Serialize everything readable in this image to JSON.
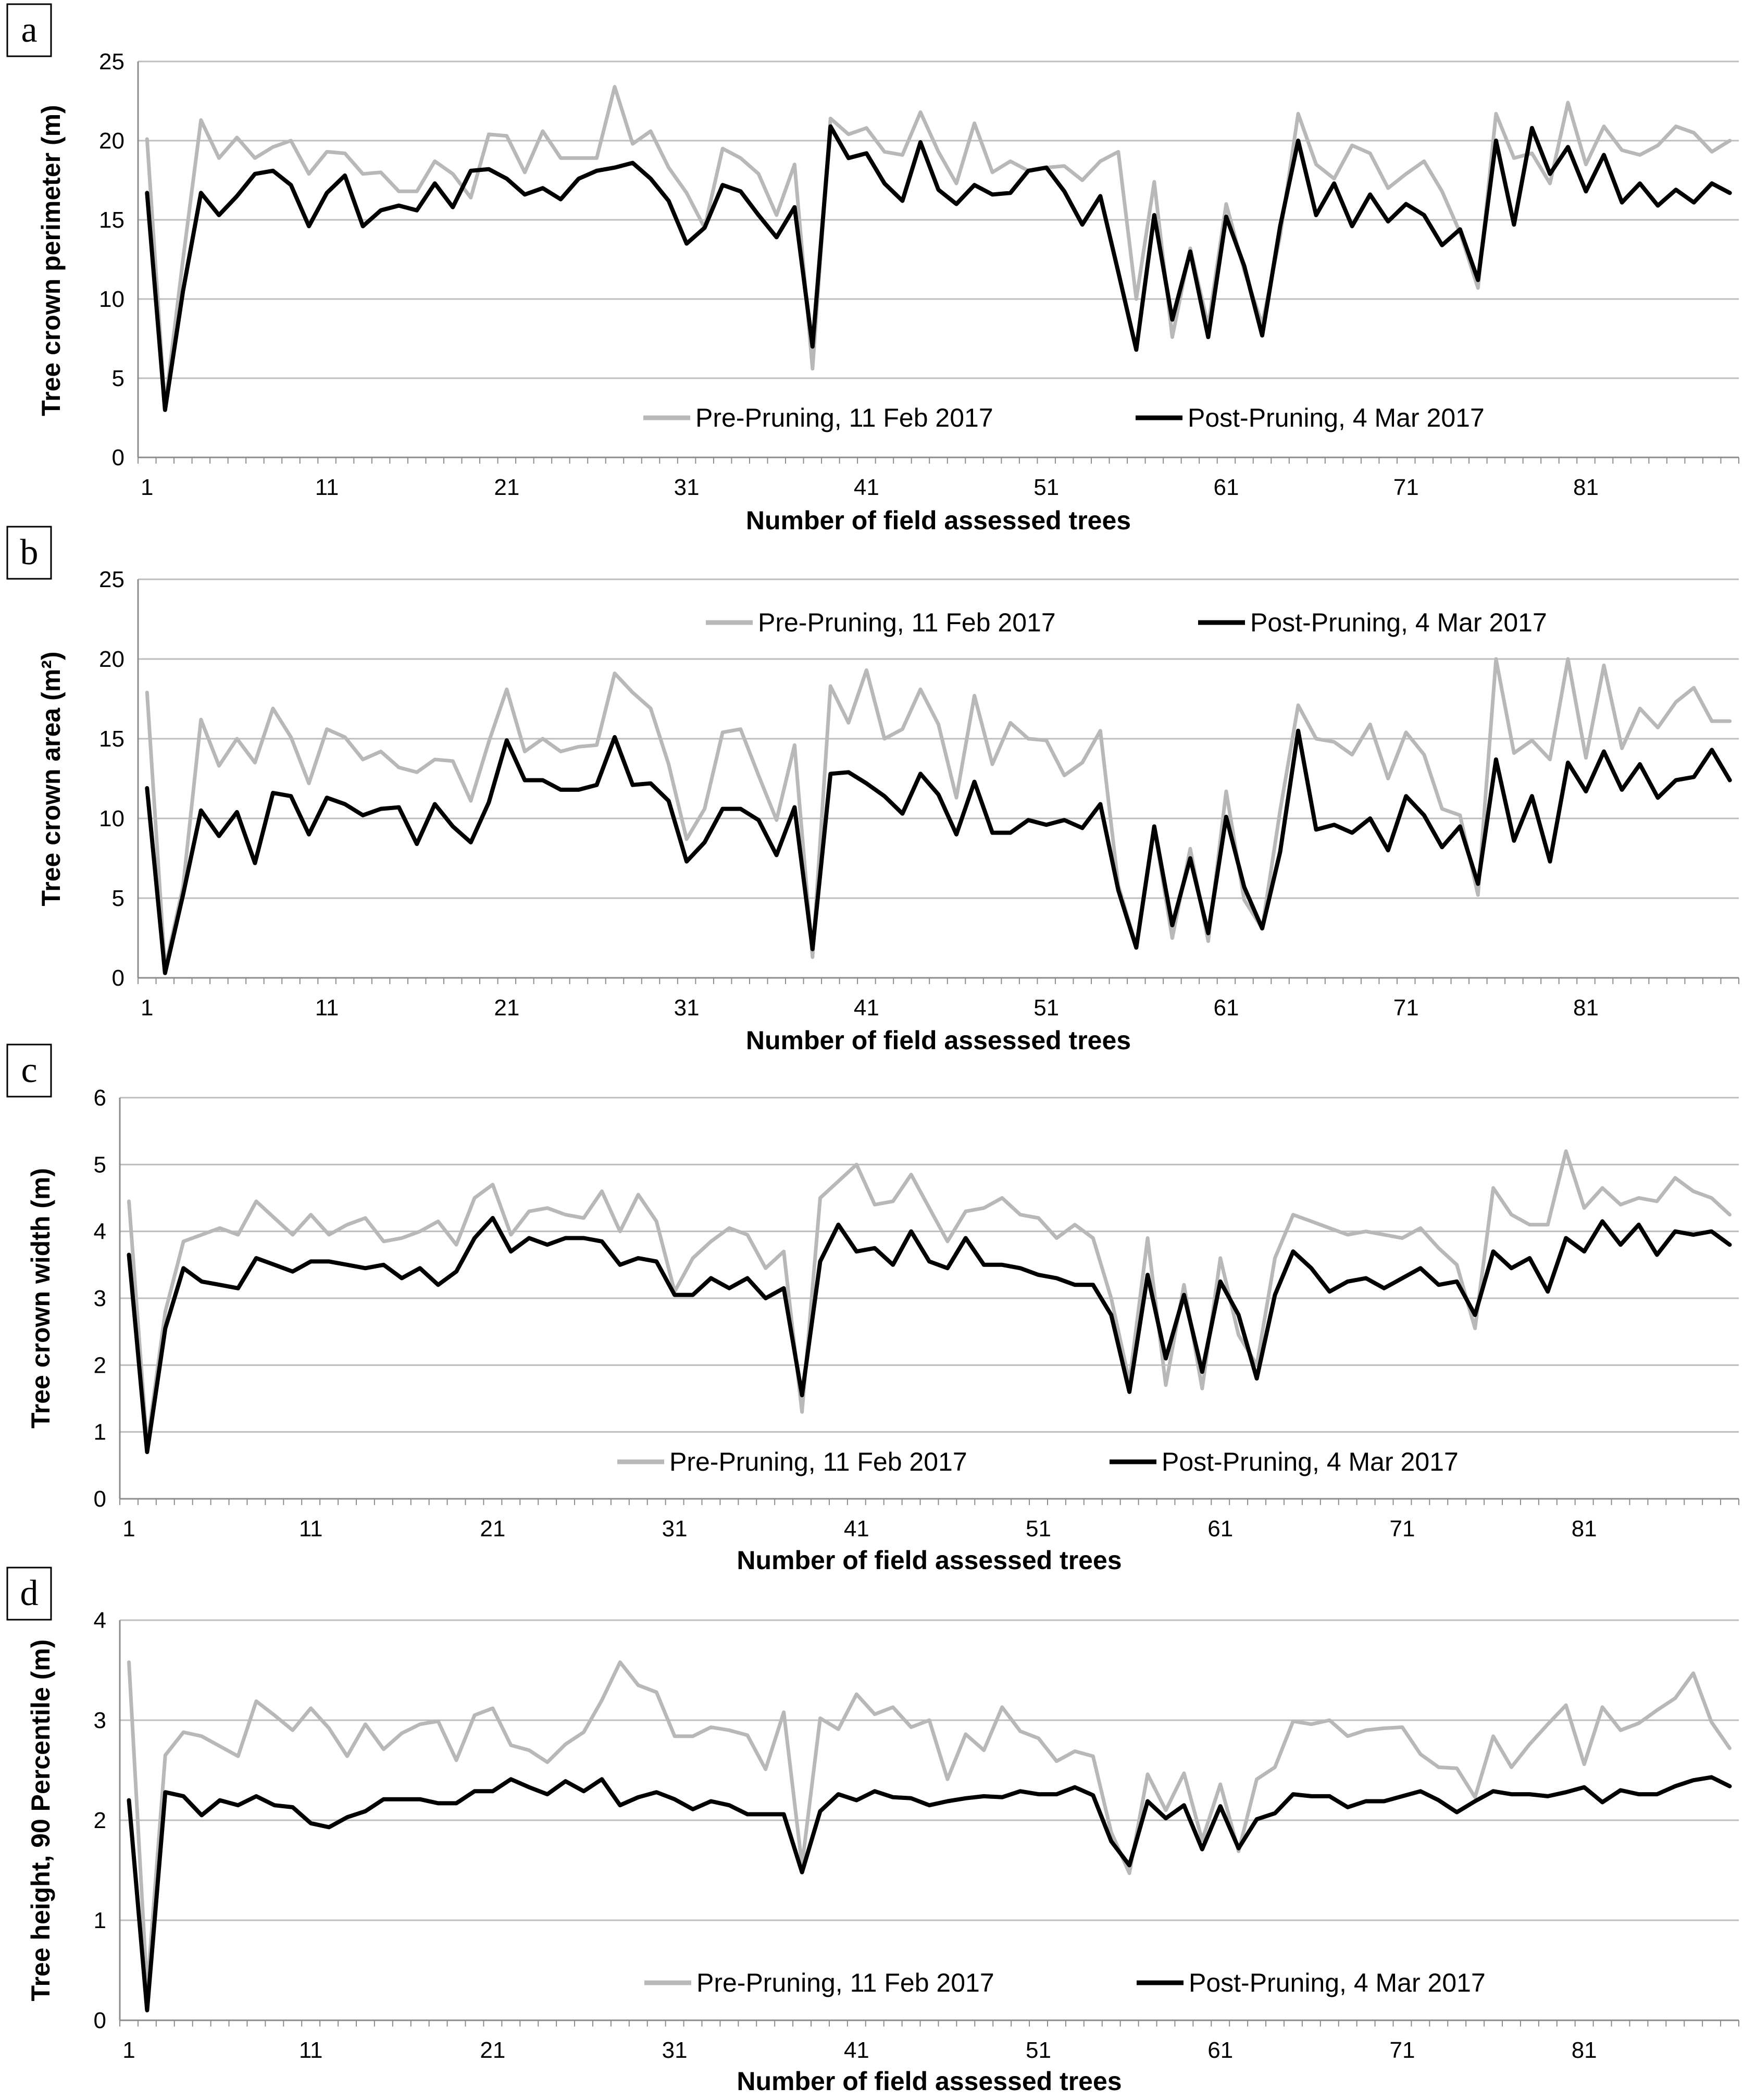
{
  "chart_data": [
    {
      "type": "line",
      "panel_label": "a",
      "ylabel": "Tree crown perimeter (m)",
      "xlabel": "Number of field assessed trees",
      "ylim": [
        0,
        25
      ],
      "yticks": [
        "0",
        "5",
        "10",
        "15",
        "20",
        "25"
      ],
      "xticks": [
        "1",
        "11",
        "21",
        "31",
        "41",
        "51",
        "61",
        "71",
        "81"
      ],
      "grid": true,
      "legend_position": "bottom-center",
      "series": [
        {
          "name": "Pre-Pruning, 11 Feb 2017",
          "color": "#b8b8b8",
          "values": [
            20.1,
            3.2,
            12.5,
            21.3,
            18.9,
            20.2,
            18.9,
            19.6,
            20.0,
            17.9,
            19.3,
            19.2,
            17.9,
            18.0,
            16.8,
            16.8,
            18.7,
            17.9,
            16.4,
            20.4,
            20.3,
            18.0,
            20.6,
            18.9,
            18.9,
            18.9,
            23.4,
            19.8,
            20.6,
            18.3,
            16.7,
            14.5,
            19.5,
            18.9,
            17.9,
            15.3,
            18.5,
            5.6,
            21.4,
            20.4,
            20.8,
            19.3,
            19.1,
            21.8,
            19.3,
            17.3,
            21.1,
            18.0,
            18.7,
            18.1,
            18.3,
            18.4,
            17.5,
            18.7,
            19.3,
            10.0,
            17.4,
            7.6,
            13.2,
            8.3,
            16.0,
            11.8,
            8.4,
            14.0,
            21.7,
            18.5,
            17.6,
            19.7,
            19.2,
            17.0,
            17.9,
            18.7,
            16.8,
            14.2,
            10.7,
            21.7,
            18.9,
            19.2,
            17.3,
            22.4,
            18.5,
            20.9,
            19.4,
            19.1,
            19.7,
            20.9,
            20.5,
            19.3,
            20.0
          ]
        },
        {
          "name": "Post-Pruning, 4 Mar 2017",
          "color": "#000000",
          "values": [
            16.7,
            3.0,
            10.5,
            16.7,
            15.3,
            16.5,
            17.9,
            18.1,
            17.2,
            14.6,
            16.7,
            17.8,
            14.6,
            15.6,
            15.9,
            15.6,
            17.3,
            15.8,
            18.1,
            18.2,
            17.6,
            16.6,
            17.0,
            16.3,
            17.6,
            18.1,
            18.3,
            18.6,
            17.6,
            16.2,
            13.5,
            14.5,
            17.2,
            16.8,
            15.3,
            13.9,
            15.8,
            7.0,
            20.9,
            18.9,
            19.2,
            17.3,
            16.2,
            19.9,
            16.9,
            16.0,
            17.2,
            16.6,
            16.7,
            18.1,
            18.3,
            16.8,
            14.7,
            16.5,
            11.7,
            6.8,
            15.3,
            8.7,
            13.0,
            7.6,
            15.2,
            12.1,
            7.7,
            14.6,
            20.0,
            15.3,
            17.3,
            14.6,
            16.6,
            14.9,
            16.0,
            15.3,
            13.4,
            14.4,
            11.2,
            20.0,
            14.7,
            20.8,
            17.9,
            19.6,
            16.8,
            19.1,
            16.1,
            17.3,
            15.9,
            16.9,
            16.1,
            17.3,
            16.7
          ]
        }
      ]
    },
    {
      "type": "line",
      "panel_label": "b",
      "ylabel": "Tree crown area (m²)",
      "xlabel": "Number of field assessed trees",
      "ylim": [
        0,
        25
      ],
      "yticks": [
        "0",
        "5",
        "10",
        "15",
        "20",
        "25"
      ],
      "xticks": [
        "1",
        "11",
        "21",
        "31",
        "41",
        "51",
        "61",
        "71",
        "81"
      ],
      "grid": true,
      "legend_position": "top-center",
      "series": [
        {
          "name": "Pre-Pruning, 11 Feb 2017",
          "color": "#b8b8b8",
          "values": [
            17.9,
            0.6,
            5.7,
            16.2,
            13.3,
            15.0,
            13.5,
            16.9,
            15.1,
            12.2,
            15.6,
            15.1,
            13.7,
            14.2,
            13.2,
            12.9,
            13.7,
            13.6,
            11.1,
            14.8,
            18.1,
            14.2,
            15.0,
            14.2,
            14.5,
            14.6,
            19.1,
            17.9,
            16.9,
            13.4,
            8.7,
            10.6,
            15.4,
            15.6,
            12.7,
            9.9,
            14.6,
            1.3,
            18.3,
            16.0,
            19.3,
            15.0,
            15.6,
            18.1,
            15.9,
            11.3,
            17.7,
            13.4,
            16.0,
            15.0,
            14.9,
            12.7,
            13.5,
            15.5,
            5.8,
            2.0,
            9.4,
            2.5,
            8.1,
            2.3,
            11.7,
            4.9,
            3.1,
            10.5,
            17.1,
            15.0,
            14.8,
            14.0,
            15.9,
            12.5,
            15.4,
            14.0,
            10.6,
            10.2,
            5.2,
            20.0,
            14.1,
            14.9,
            13.7,
            20.0,
            13.8,
            19.6,
            14.4,
            16.9,
            15.7,
            17.3,
            18.2,
            16.1,
            16.1
          ]
        },
        {
          "name": "Post-Pruning, 4 Mar 2017",
          "color": "#000000",
          "values": [
            11.9,
            0.3,
            5.2,
            10.5,
            8.9,
            10.4,
            7.2,
            11.6,
            11.4,
            9.0,
            11.3,
            10.9,
            10.2,
            10.6,
            10.7,
            8.4,
            10.9,
            9.5,
            8.5,
            11.0,
            14.9,
            12.4,
            12.4,
            11.8,
            11.8,
            12.1,
            15.1,
            12.1,
            12.2,
            11.1,
            7.3,
            8.5,
            10.6,
            10.6,
            9.9,
            7.7,
            10.7,
            1.8,
            12.8,
            12.9,
            12.2,
            11.4,
            10.3,
            12.8,
            11.5,
            9.0,
            12.3,
            9.1,
            9.1,
            9.9,
            9.6,
            9.9,
            9.4,
            10.9,
            5.5,
            1.9,
            9.5,
            3.3,
            7.5,
            2.8,
            10.1,
            5.7,
            3.1,
            7.9,
            15.5,
            9.3,
            9.6,
            9.1,
            10.0,
            8.0,
            11.4,
            10.2,
            8.2,
            9.5,
            5.9,
            13.7,
            8.6,
            11.4,
            7.3,
            13.5,
            11.7,
            14.2,
            11.8,
            13.4,
            11.3,
            12.4,
            12.6,
            14.3,
            12.4
          ]
        }
      ]
    },
    {
      "type": "line",
      "panel_label": "c",
      "ylabel": "Tree crown width (m)",
      "xlabel": "Number of field assessed trees",
      "ylim": [
        0,
        6
      ],
      "yticks": [
        "0",
        "1",
        "2",
        "3",
        "4",
        "5",
        "6"
      ],
      "xticks": [
        "1",
        "11",
        "21",
        "31",
        "41",
        "51",
        "61",
        "71",
        "81"
      ],
      "grid": true,
      "legend_position": "bottom-center",
      "series": [
        {
          "name": "Pre-Pruning, 11 Feb 2017",
          "color": "#b8b8b8",
          "values": [
            4.45,
            0.8,
            2.8,
            3.85,
            3.95,
            4.05,
            3.95,
            4.45,
            4.2,
            3.95,
            4.25,
            3.95,
            4.1,
            4.2,
            3.85,
            3.9,
            4.0,
            4.15,
            3.8,
            4.5,
            4.7,
            3.95,
            4.3,
            4.35,
            4.25,
            4.2,
            4.6,
            4.0,
            4.55,
            4.15,
            3.1,
            3.6,
            3.85,
            4.05,
            3.95,
            3.45,
            3.7,
            1.3,
            4.5,
            4.75,
            5.0,
            4.4,
            4.45,
            4.85,
            4.35,
            3.85,
            4.3,
            4.35,
            4.5,
            4.25,
            4.2,
            3.9,
            4.1,
            3.9,
            3.0,
            1.75,
            3.9,
            1.7,
            3.2,
            1.65,
            3.6,
            2.45,
            2.0,
            3.6,
            4.25,
            4.15,
            4.05,
            3.95,
            4.0,
            3.95,
            3.9,
            4.05,
            3.75,
            3.5,
            2.55,
            4.65,
            4.25,
            4.1,
            4.1,
            5.2,
            4.35,
            4.65,
            4.4,
            4.5,
            4.45,
            4.8,
            4.6,
            4.5,
            4.25
          ]
        },
        {
          "name": "Post-Pruning, 4 Mar 2017",
          "color": "#000000",
          "values": [
            3.65,
            0.7,
            2.55,
            3.45,
            3.25,
            3.2,
            3.15,
            3.6,
            3.5,
            3.4,
            3.55,
            3.55,
            3.5,
            3.45,
            3.5,
            3.3,
            3.45,
            3.2,
            3.4,
            3.9,
            4.2,
            3.7,
            3.9,
            3.8,
            3.9,
            3.9,
            3.85,
            3.5,
            3.6,
            3.55,
            3.05,
            3.05,
            3.3,
            3.15,
            3.3,
            3.0,
            3.15,
            1.55,
            3.55,
            4.1,
            3.7,
            3.75,
            3.5,
            4.0,
            3.55,
            3.45,
            3.9,
            3.5,
            3.5,
            3.45,
            3.35,
            3.3,
            3.2,
            3.2,
            2.75,
            1.6,
            3.35,
            2.1,
            3.05,
            1.9,
            3.25,
            2.75,
            1.8,
            3.05,
            3.7,
            3.45,
            3.1,
            3.25,
            3.3,
            3.15,
            3.3,
            3.45,
            3.2,
            3.25,
            2.75,
            3.7,
            3.45,
            3.6,
            3.1,
            3.9,
            3.7,
            4.15,
            3.8,
            4.1,
            3.65,
            4.0,
            3.95,
            4.0,
            3.8
          ]
        }
      ]
    },
    {
      "type": "line",
      "panel_label": "d",
      "ylabel": "Tree height, 90 Percentile (m)",
      "xlabel": "Number of field assessed trees",
      "ylim": [
        0,
        4
      ],
      "yticks": [
        "0",
        "1",
        "2",
        "3",
        "4"
      ],
      "xticks": [
        "1",
        "11",
        "21",
        "31",
        "41",
        "51",
        "61",
        "71",
        "81"
      ],
      "grid": true,
      "legend_position": "bottom-center",
      "series": [
        {
          "name": "Pre-Pruning, 11 Feb 2017",
          "color": "#b8b8b8",
          "values": [
            3.58,
            0.3,
            2.65,
            2.88,
            2.84,
            2.74,
            2.64,
            3.19,
            3.05,
            2.9,
            3.12,
            2.92,
            2.64,
            2.96,
            2.71,
            2.87,
            2.96,
            2.99,
            2.6,
            3.05,
            3.12,
            2.75,
            2.7,
            2.58,
            2.76,
            2.88,
            3.2,
            3.58,
            3.35,
            3.28,
            2.84,
            2.84,
            2.93,
            2.9,
            2.85,
            2.51,
            3.08,
            1.55,
            3.02,
            2.91,
            3.26,
            3.06,
            3.13,
            2.93,
            3.0,
            2.41,
            2.86,
            2.7,
            3.13,
            2.89,
            2.82,
            2.59,
            2.69,
            2.64,
            1.88,
            1.47,
            2.46,
            2.1,
            2.47,
            1.8,
            2.36,
            1.69,
            2.41,
            2.53,
            2.99,
            2.96,
            3.0,
            2.84,
            2.9,
            2.92,
            2.93,
            2.66,
            2.53,
            2.52,
            2.23,
            2.84,
            2.53,
            2.76,
            2.96,
            3.15,
            2.56,
            3.13,
            2.9,
            2.97,
            3.1,
            3.22,
            3.47,
            2.98,
            2.72
          ]
        },
        {
          "name": "Post-Pruning, 4 Mar 2017",
          "color": "#000000",
          "values": [
            2.2,
            0.1,
            2.28,
            2.24,
            2.05,
            2.2,
            2.15,
            2.24,
            2.15,
            2.13,
            1.97,
            1.93,
            2.03,
            2.09,
            2.21,
            2.21,
            2.21,
            2.17,
            2.17,
            2.29,
            2.29,
            2.41,
            2.33,
            2.26,
            2.39,
            2.29,
            2.41,
            2.15,
            2.23,
            2.28,
            2.21,
            2.11,
            2.19,
            2.15,
            2.06,
            2.06,
            2.06,
            1.48,
            2.09,
            2.26,
            2.2,
            2.29,
            2.23,
            2.22,
            2.15,
            2.19,
            2.22,
            2.24,
            2.23,
            2.29,
            2.26,
            2.26,
            2.33,
            2.25,
            1.79,
            1.55,
            2.19,
            2.02,
            2.15,
            1.71,
            2.14,
            1.72,
            2.01,
            2.07,
            2.26,
            2.24,
            2.24,
            2.13,
            2.19,
            2.19,
            2.24,
            2.29,
            2.2,
            2.08,
            2.19,
            2.29,
            2.26,
            2.26,
            2.24,
            2.28,
            2.33,
            2.18,
            2.3,
            2.26,
            2.26,
            2.34,
            2.4,
            2.43,
            2.34
          ]
        }
      ]
    }
  ]
}
